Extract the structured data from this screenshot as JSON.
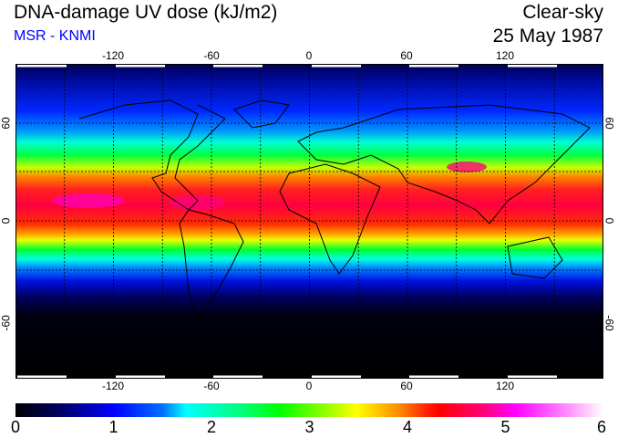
{
  "header": {
    "title": "DNA-damage UV dose (kJ/m2)",
    "source": "MSR - KNMI",
    "condition": "Clear-sky",
    "date": "25 May 1987"
  },
  "axes": {
    "lon_ticks": [
      "-120",
      "-60",
      "0",
      "60",
      "120"
    ],
    "lat_ticks": [
      "60",
      "0",
      "-60"
    ]
  },
  "colorbar": {
    "labels": [
      "0",
      "1",
      "2",
      "3",
      "4",
      "5",
      "6"
    ],
    "range": [
      0,
      6
    ],
    "unit": "kJ/m2"
  }
}
